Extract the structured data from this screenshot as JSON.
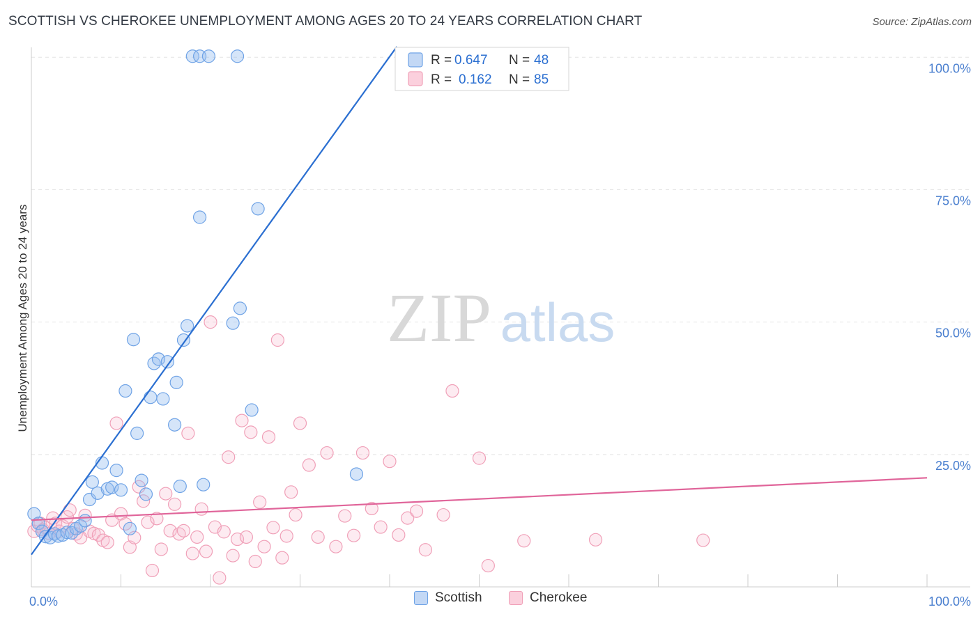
{
  "header": {
    "title": "SCOTTISH VS CHEROKEE UNEMPLOYMENT AMONG AGES 20 TO 24 YEARS CORRELATION CHART",
    "source": "Source: ZipAtlas.com"
  },
  "watermark": {
    "zip": "ZIP",
    "atlas": "atlas"
  },
  "legend": {
    "r_label": "R =",
    "n_label": "N =",
    "rows": [
      {
        "r": "0.647",
        "n": "48"
      },
      {
        "r": "0.162",
        "n": "85"
      }
    ]
  },
  "chart_data": {
    "type": "scatter",
    "ylabel": "Unemployment Among Ages 20 to 24 years",
    "xlim": [
      0,
      100
    ],
    "ylim": [
      0,
      105
    ],
    "x_tick_labels": [
      {
        "value": 0,
        "label": "0.0%"
      },
      {
        "value": 100,
        "label": "100.0%"
      }
    ],
    "y_tick_labels": [
      {
        "value": 25,
        "label": "25.0%"
      },
      {
        "value": 50,
        "label": "50.0%"
      },
      {
        "value": 75,
        "label": "75.0%"
      },
      {
        "value": 100,
        "label": "100.0%"
      }
    ],
    "grid": "horizontal dashed",
    "legend_placement": "top-center and bottom",
    "colors": {
      "scottish": "#6fa3e6",
      "scottish_line": "#2b6fd1",
      "cherokee": "#f0a0b8",
      "cherokee_line": "#e0659a"
    },
    "series": [
      {
        "name": "Scottish",
        "trend": {
          "x0": 0,
          "y0": 6.1,
          "x1": 40.8,
          "y1": 102
        },
        "points": [
          [
            0.3,
            13.8
          ],
          [
            0.8,
            12.0
          ],
          [
            1.2,
            10.5
          ],
          [
            1.6,
            9.5
          ],
          [
            2.1,
            9.3
          ],
          [
            2.6,
            10.0
          ],
          [
            3.0,
            9.6
          ],
          [
            3.5,
            9.8
          ],
          [
            4.0,
            10.3
          ],
          [
            4.5,
            10.2
          ],
          [
            5.0,
            11.0
          ],
          [
            5.5,
            11.5
          ],
          [
            6.0,
            12.5
          ],
          [
            6.5,
            16.5
          ],
          [
            6.8,
            19.8
          ],
          [
            7.4,
            17.7
          ],
          [
            7.9,
            23.4
          ],
          [
            8.5,
            18.5
          ],
          [
            9.0,
            18.8
          ],
          [
            9.5,
            22.0
          ],
          [
            10.0,
            18.3
          ],
          [
            10.5,
            37.0
          ],
          [
            11.0,
            11.0
          ],
          [
            11.4,
            46.7
          ],
          [
            11.8,
            29.0
          ],
          [
            12.3,
            20.1
          ],
          [
            12.8,
            17.5
          ],
          [
            13.3,
            35.8
          ],
          [
            13.7,
            42.2
          ],
          [
            14.2,
            43.0
          ],
          [
            14.7,
            35.5
          ],
          [
            15.2,
            42.5
          ],
          [
            16.2,
            38.6
          ],
          [
            16.6,
            19.0
          ],
          [
            17.0,
            46.6
          ],
          [
            17.4,
            49.3
          ],
          [
            16.0,
            30.6
          ],
          [
            18.8,
            69.8
          ],
          [
            19.2,
            19.3
          ],
          [
            22.5,
            49.8
          ],
          [
            23.3,
            52.6
          ],
          [
            24.6,
            33.4
          ],
          [
            25.3,
            71.4
          ],
          [
            36.3,
            21.3
          ],
          [
            18.0,
            100.2
          ],
          [
            18.8,
            100.2
          ],
          [
            19.8,
            100.2
          ],
          [
            23.0,
            100.2
          ]
        ]
      },
      {
        "name": "Cherokee",
        "trend": {
          "x0": 0,
          "y0": 12.6,
          "x1": 100,
          "y1": 20.6
        },
        "points": [
          [
            0.3,
            10.5
          ],
          [
            0.7,
            11.5
          ],
          [
            1.0,
            12.0
          ],
          [
            1.3,
            10.8
          ],
          [
            1.6,
            11.2
          ],
          [
            2.0,
            10.1
          ],
          [
            2.4,
            13.0
          ],
          [
            2.7,
            12.0
          ],
          [
            3.1,
            10.5
          ],
          [
            3.5,
            11.5
          ],
          [
            4.0,
            13.2
          ],
          [
            4.3,
            14.5
          ],
          [
            4.7,
            11.0
          ],
          [
            5.0,
            10.0
          ],
          [
            5.5,
            9.3
          ],
          [
            6.0,
            13.5
          ],
          [
            6.5,
            10.5
          ],
          [
            7.0,
            10.1
          ],
          [
            7.5,
            9.8
          ],
          [
            8.0,
            8.8
          ],
          [
            8.5,
            8.4
          ],
          [
            9.0,
            12.6
          ],
          [
            9.5,
            30.9
          ],
          [
            10.0,
            13.8
          ],
          [
            10.5,
            11.9
          ],
          [
            11.0,
            7.5
          ],
          [
            11.5,
            9.3
          ],
          [
            12.0,
            18.9
          ],
          [
            12.5,
            16.2
          ],
          [
            13.0,
            12.2
          ],
          [
            13.5,
            3.1
          ],
          [
            14.0,
            12.9
          ],
          [
            14.5,
            7.1
          ],
          [
            15.0,
            17.6
          ],
          [
            15.5,
            10.6
          ],
          [
            16.0,
            15.6
          ],
          [
            16.5,
            10.0
          ],
          [
            17.0,
            10.6
          ],
          [
            17.5,
            29.0
          ],
          [
            18.0,
            6.3
          ],
          [
            18.5,
            9.4
          ],
          [
            19.0,
            14.7
          ],
          [
            19.5,
            6.7
          ],
          [
            20.0,
            50.0
          ],
          [
            20.5,
            11.3
          ],
          [
            21.0,
            1.7
          ],
          [
            21.5,
            10.4
          ],
          [
            22.0,
            24.5
          ],
          [
            22.5,
            5.9
          ],
          [
            23.0,
            9.0
          ],
          [
            23.5,
            31.4
          ],
          [
            24.0,
            9.4
          ],
          [
            24.5,
            29.2
          ],
          [
            25.0,
            4.8
          ],
          [
            25.5,
            16.0
          ],
          [
            26.0,
            7.6
          ],
          [
            26.5,
            28.3
          ],
          [
            27.0,
            11.2
          ],
          [
            27.5,
            46.6
          ],
          [
            28.0,
            5.5
          ],
          [
            28.5,
            9.6
          ],
          [
            29.0,
            17.9
          ],
          [
            29.5,
            13.6
          ],
          [
            30.0,
            30.9
          ],
          [
            31.0,
            23.0
          ],
          [
            32.0,
            9.4
          ],
          [
            33.0,
            25.3
          ],
          [
            34.0,
            7.6
          ],
          [
            35.0,
            13.4
          ],
          [
            36.0,
            9.7
          ],
          [
            37.0,
            25.3
          ],
          [
            38.0,
            14.8
          ],
          [
            39.0,
            11.3
          ],
          [
            40.0,
            23.7
          ],
          [
            41.0,
            9.8
          ],
          [
            42.0,
            13.0
          ],
          [
            43.0,
            14.3
          ],
          [
            44.0,
            7.0
          ],
          [
            46.0,
            13.6
          ],
          [
            47.0,
            37.0
          ],
          [
            50.0,
            24.3
          ],
          [
            51.0,
            4.0
          ],
          [
            55.0,
            8.7
          ],
          [
            63.0,
            8.9
          ],
          [
            75.0,
            8.8
          ]
        ]
      }
    ]
  }
}
